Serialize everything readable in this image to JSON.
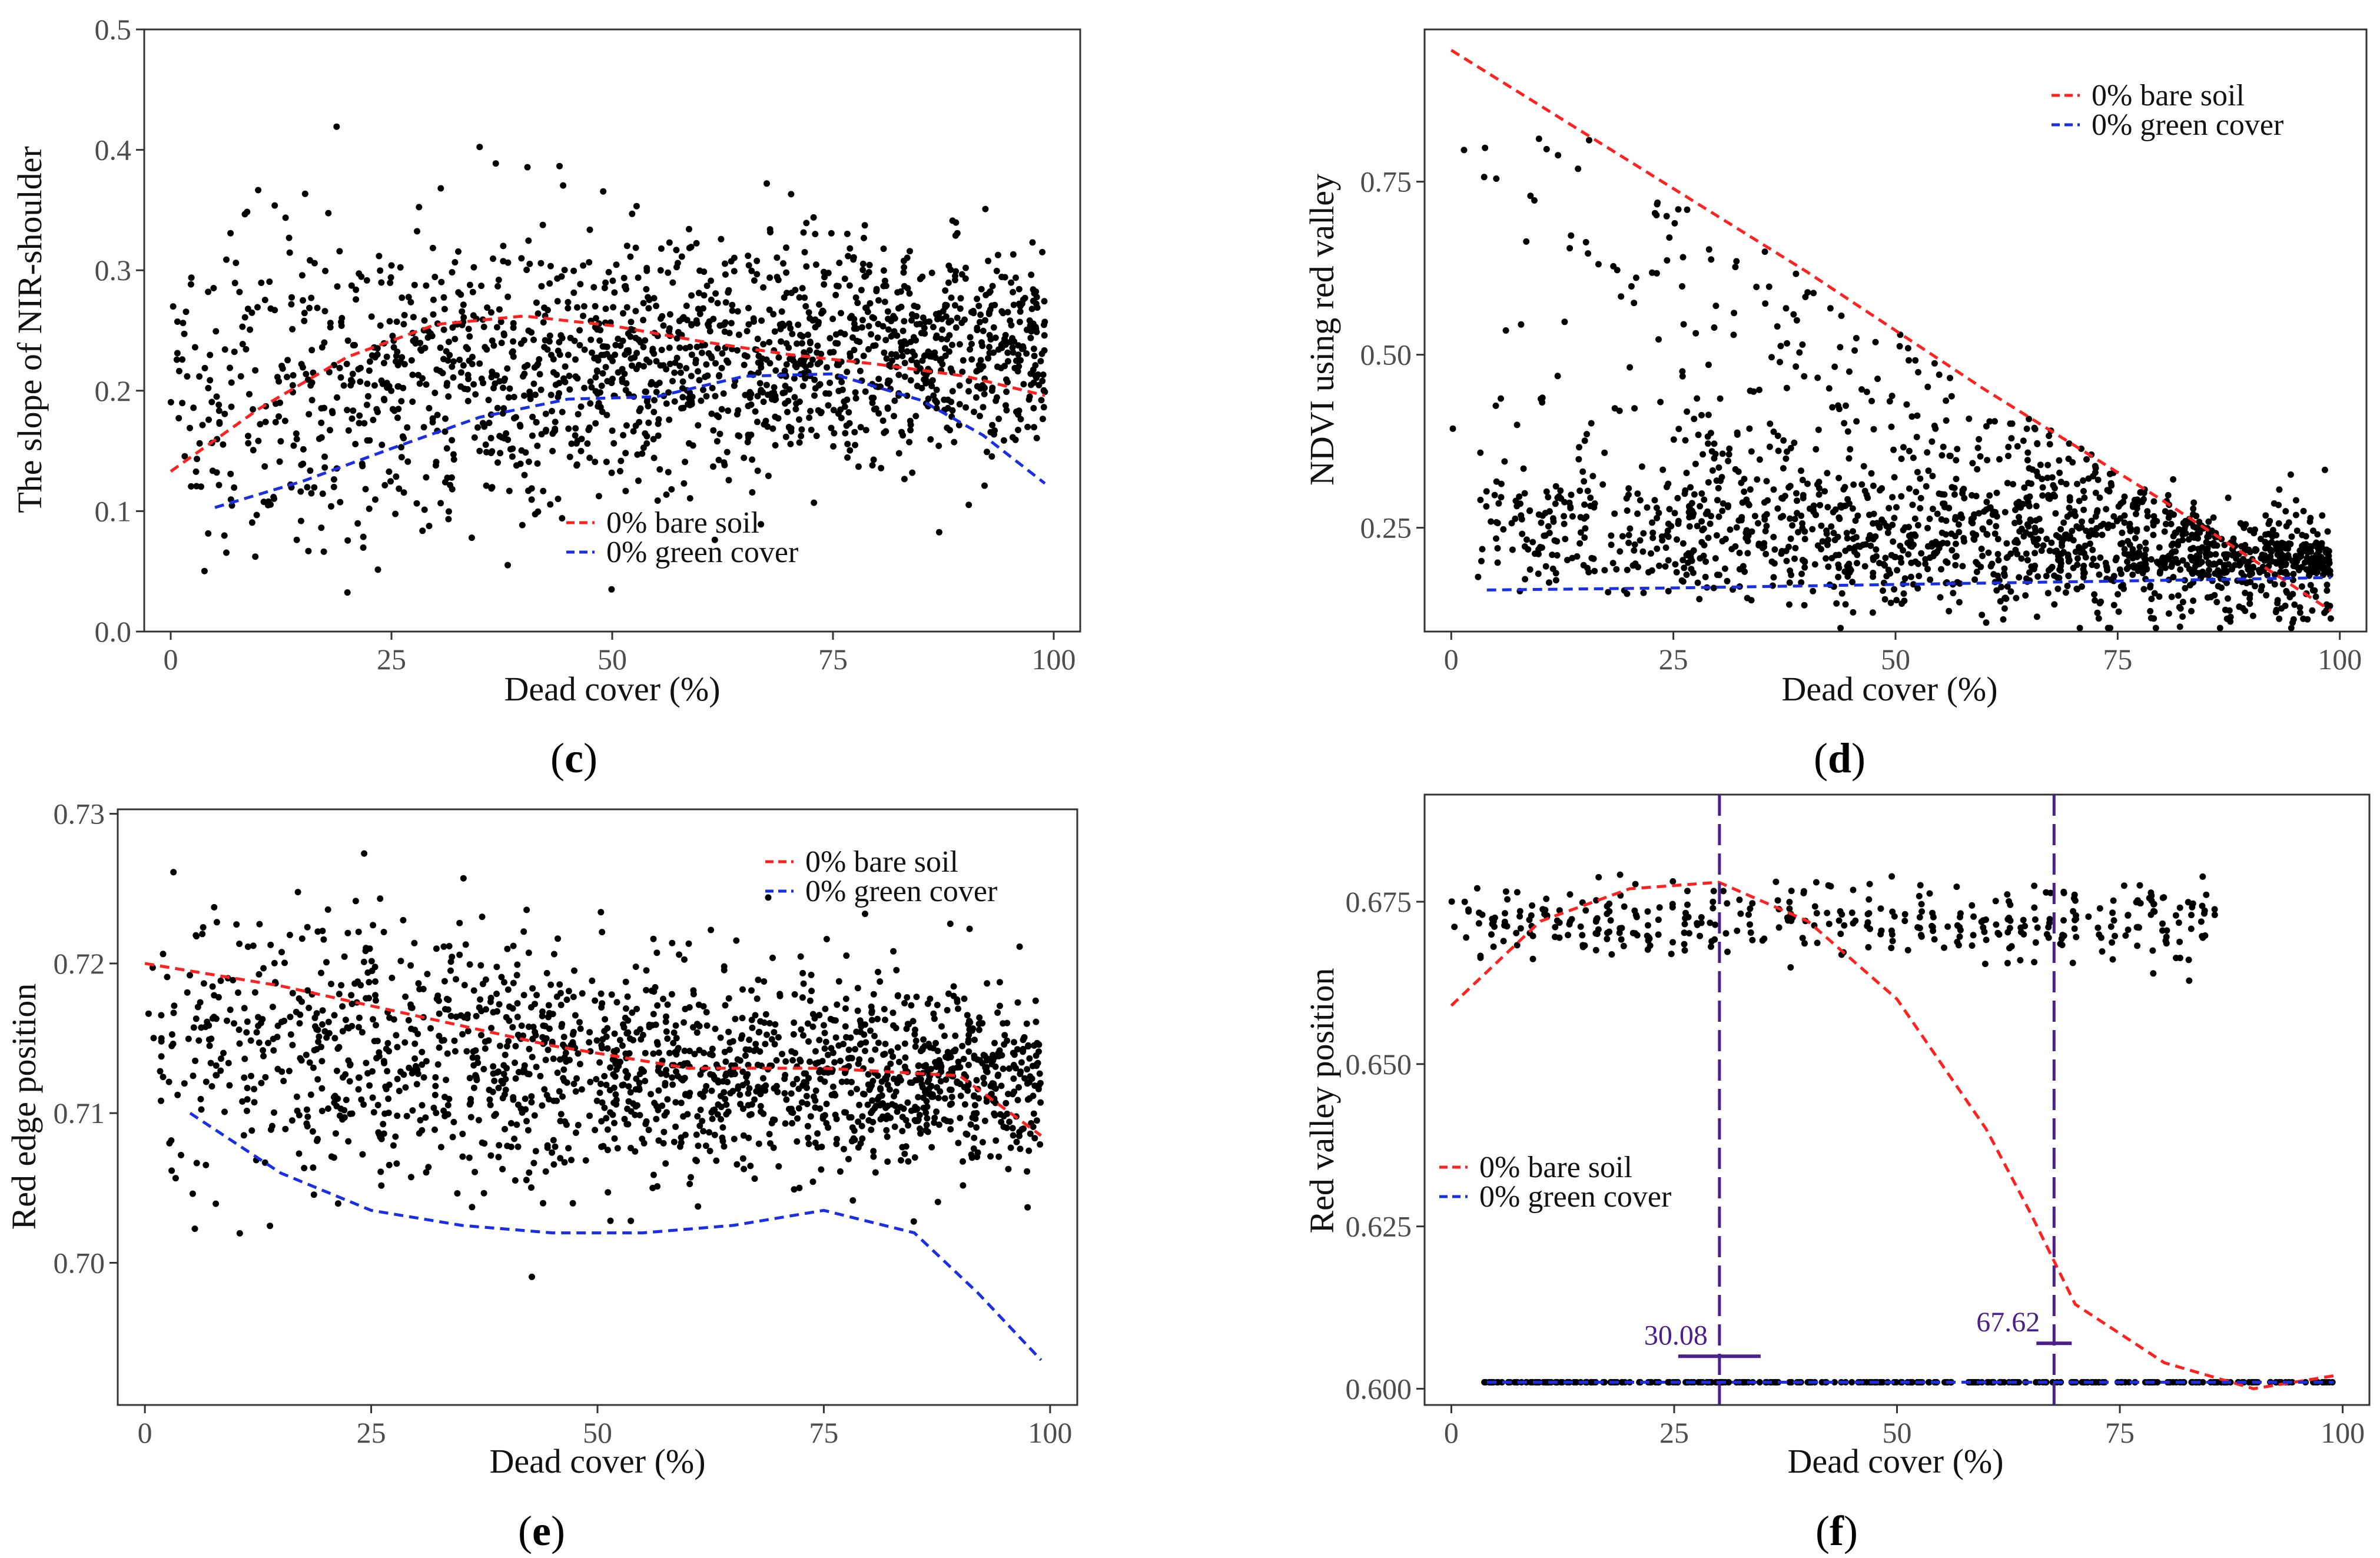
{
  "figure": {
    "panel_count": 4
  },
  "colors": {
    "bare_soil": "#ff2020",
    "green_cover": "#1a2ee6",
    "threshold": "#4b1f8c",
    "points": "#000000"
  },
  "chart_data": [
    {
      "id": "c",
      "type": "scatter",
      "label_letter": "c",
      "xlabel": "Dead cover (%)",
      "ylabel": "The slope of NIR-shoulder",
      "xlim": [
        -3,
        103
      ],
      "ylim": [
        0,
        0.5
      ],
      "xticks": [
        0,
        25,
        50,
        75,
        100
      ],
      "xtick_labels": [
        "0",
        "25",
        "50",
        "75",
        "100"
      ],
      "yticks": [
        0,
        0.1,
        0.2,
        0.3,
        0.4,
        0.5
      ],
      "ytick_labels": [
        "0.0",
        "0.1",
        "0.2",
        "0.3",
        "0.4",
        "0.5"
      ],
      "legend": [
        {
          "label": "0% bare soil",
          "series": "bare_soil"
        },
        {
          "label": "0% green cover",
          "series": "green_cover"
        }
      ],
      "legend_position": "bottom-center",
      "series": [
        {
          "name": "bare_soil",
          "style": "dashed",
          "x": [
            0,
            10,
            20,
            30,
            40,
            50,
            60,
            70,
            80,
            90,
            99
          ],
          "y": [
            0.133,
            0.185,
            0.228,
            0.255,
            0.262,
            0.254,
            0.241,
            0.23,
            0.222,
            0.212,
            0.196
          ]
        },
        {
          "name": "green_cover",
          "style": "dashed",
          "x": [
            5,
            15,
            25,
            35,
            45,
            55,
            65,
            75,
            85,
            92,
            99
          ],
          "y": [
            0.103,
            0.125,
            0.152,
            0.178,
            0.193,
            0.195,
            0.212,
            0.214,
            0.192,
            0.163,
            0.123
          ]
        }
      ],
      "scatter": {
        "n": 1700,
        "x_range": [
          0,
          99
        ],
        "y_center": [
          0.2,
          0.24
        ],
        "spread": 0.05
      }
    },
    {
      "id": "d",
      "type": "scatter",
      "label_letter": "d",
      "xlabel": "Dead cover (%)",
      "ylabel": "NDVI using red valley",
      "xlim": [
        -3,
        103
      ],
      "ylim": [
        0.1,
        0.97
      ],
      "xticks": [
        0,
        25,
        50,
        75,
        100
      ],
      "xtick_labels": [
        "0",
        "25",
        "50",
        "75",
        "100"
      ],
      "yticks": [
        0.25,
        0.5,
        0.75
      ],
      "ytick_labels": [
        "0.25",
        "0.50",
        "0.75"
      ],
      "legend": [
        {
          "label": "0% bare soil",
          "series": "bare_soil"
        },
        {
          "label": "0% green cover",
          "series": "green_cover"
        }
      ],
      "legend_position": "top-right",
      "series": [
        {
          "name": "bare_soil",
          "style": "dashed",
          "x": [
            0,
            20,
            40,
            60,
            80,
            99
          ],
          "y": [
            0.94,
            0.78,
            0.62,
            0.45,
            0.29,
            0.13
          ]
        },
        {
          "name": "green_cover",
          "style": "dashed",
          "x": [
            4,
            25,
            50,
            75,
            99
          ],
          "y": [
            0.16,
            0.163,
            0.168,
            0.173,
            0.178
          ]
        }
      ],
      "scatter": {
        "n": 1700,
        "x_range": [
          0,
          99
        ],
        "y_center": [
          0.38,
          0.22
        ],
        "spread": 0.07
      }
    },
    {
      "id": "e",
      "type": "scatter",
      "label_letter": "e",
      "xlabel": "Dead cover (%)",
      "ylabel": "Red edge position",
      "xlim": [
        -3,
        103
      ],
      "ylim": [
        0.6905,
        0.7303
      ],
      "xticks": [
        0,
        25,
        50,
        75,
        100
      ],
      "xtick_labels": [
        "0",
        "25",
        "50",
        "75",
        "100"
      ],
      "yticks": [
        0.7,
        0.71,
        0.72,
        0.73
      ],
      "ytick_labels": [
        "0.70",
        "0.71",
        "0.72",
        "0.73"
      ],
      "legend": [
        {
          "label": "0% bare soil",
          "series": "bare_soil"
        },
        {
          "label": "0% green cover",
          "series": "green_cover"
        }
      ],
      "legend_position": "top-right",
      "series": [
        {
          "name": "bare_soil",
          "style": "dashed",
          "x": [
            0,
            15,
            30,
            45,
            60,
            75,
            90,
            99
          ],
          "y": [
            0.72,
            0.7185,
            0.7165,
            0.7145,
            0.713,
            0.713,
            0.7125,
            0.7085
          ]
        },
        {
          "name": "green_cover",
          "style": "dashed",
          "x": [
            5,
            15,
            25,
            35,
            45,
            55,
            65,
            75,
            85,
            92,
            99
          ],
          "y": [
            0.71,
            0.706,
            0.7035,
            0.7025,
            0.702,
            0.702,
            0.7025,
            0.7035,
            0.702,
            0.698,
            0.6935
          ]
        }
      ],
      "scatter": {
        "n": 1700,
        "x_range": [
          0,
          99
        ],
        "y_center": [
          0.7145,
          0.712
        ],
        "spread": 0.0035
      }
    },
    {
      "id": "f",
      "type": "scatter",
      "label_letter": "f",
      "xlabel": "Dead cover (%)",
      "ylabel": "Red valley position",
      "xlim": [
        -3,
        103
      ],
      "ylim": [
        0.5975,
        0.6915
      ],
      "xticks": [
        0,
        25,
        50,
        75,
        100
      ],
      "xtick_labels": [
        "0",
        "25",
        "50",
        "75",
        "100"
      ],
      "yticks": [
        0.6,
        0.625,
        0.65,
        0.675
      ],
      "ytick_labels": [
        "0.600",
        "0.625",
        "0.650",
        "0.675"
      ],
      "legend": [
        {
          "label": "0% bare soil",
          "series": "bare_soil"
        },
        {
          "label": "0% green cover",
          "series": "green_cover"
        }
      ],
      "legend_position": "bottom-left",
      "series": [
        {
          "name": "bare_soil",
          "style": "dashed",
          "x": [
            0,
            10,
            20,
            30,
            40,
            50,
            60,
            65,
            70,
            80,
            90,
            99
          ],
          "y": [
            0.659,
            0.672,
            0.677,
            0.678,
            0.672,
            0.66,
            0.64,
            0.627,
            0.613,
            0.604,
            0.6,
            0.602
          ]
        },
        {
          "name": "green_cover",
          "style": "dashed",
          "x": [
            4,
            99
          ],
          "y": [
            0.601,
            0.601
          ]
        }
      ],
      "thresholds": [
        {
          "x": 30.08,
          "label": "30.08",
          "marker_y": 0.605
        },
        {
          "x": 67.62,
          "label": "67.62",
          "marker_y": 0.607
        }
      ],
      "scatter": {
        "n": 700,
        "x_range": [
          0,
          86
        ],
        "y_center": [
          0.672,
          0.672
        ],
        "spread": 0.003
      }
    }
  ]
}
